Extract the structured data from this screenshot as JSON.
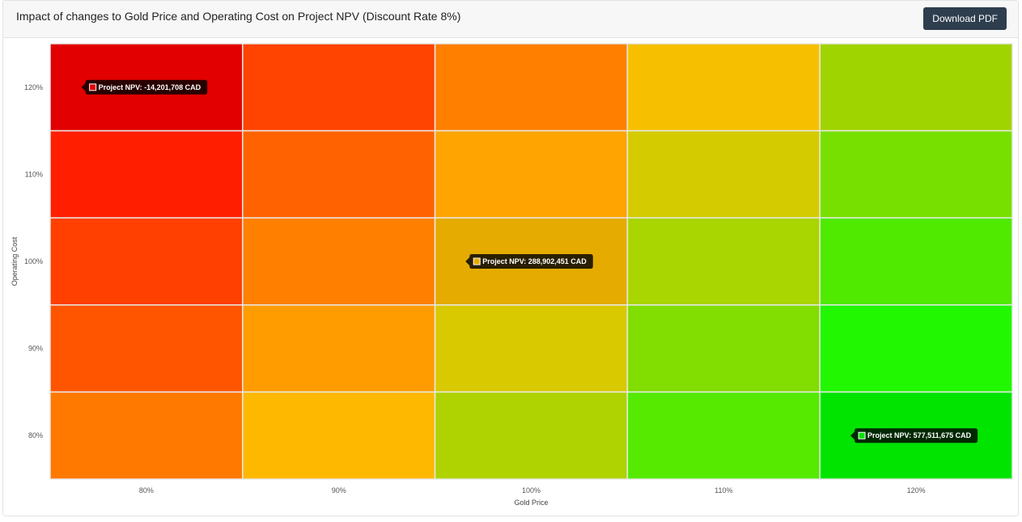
{
  "header": {
    "title": "Impact of changes to Gold Price and Operating Cost on Project NPV (Discount Rate 8%)",
    "download_label": "Download PDF"
  },
  "chart_data": {
    "type": "heatmap",
    "xlabel": "Gold Price",
    "ylabel": "Operating Cost",
    "x_categories": [
      "80%",
      "90%",
      "100%",
      "110%",
      "120%"
    ],
    "y_categories": [
      "120%",
      "110%",
      "100%",
      "90%",
      "80%"
    ],
    "cell_colors": [
      [
        "#e20000",
        "#ff4300",
        "#ff8000",
        "#f6c000",
        "#a0d400"
      ],
      [
        "#ff1e00",
        "#ff6200",
        "#ffa400",
        "#d4cc00",
        "#78e000"
      ],
      [
        "#ff4000",
        "#ff8000",
        "#e5ab00",
        "#a9d500",
        "#50ea00"
      ],
      [
        "#ff5500",
        "#ff9c00",
        "#d9c900",
        "#82dd00",
        "#20f700"
      ],
      [
        "#ff7800",
        "#ffb800",
        "#aed300",
        "#55ea00",
        "#00e400"
      ]
    ],
    "tooltips": [
      {
        "row": 0,
        "col": 0,
        "color": "#e20000",
        "text": "Project NPV: -14,201,708 CAD"
      },
      {
        "row": 2,
        "col": 2,
        "color": "#e5ab00",
        "text": "Project NPV: 288,902,451 CAD"
      },
      {
        "row": 4,
        "col": 4,
        "color": "#00e400",
        "text": "Project NPV: 577,511,675 CAD"
      }
    ]
  }
}
